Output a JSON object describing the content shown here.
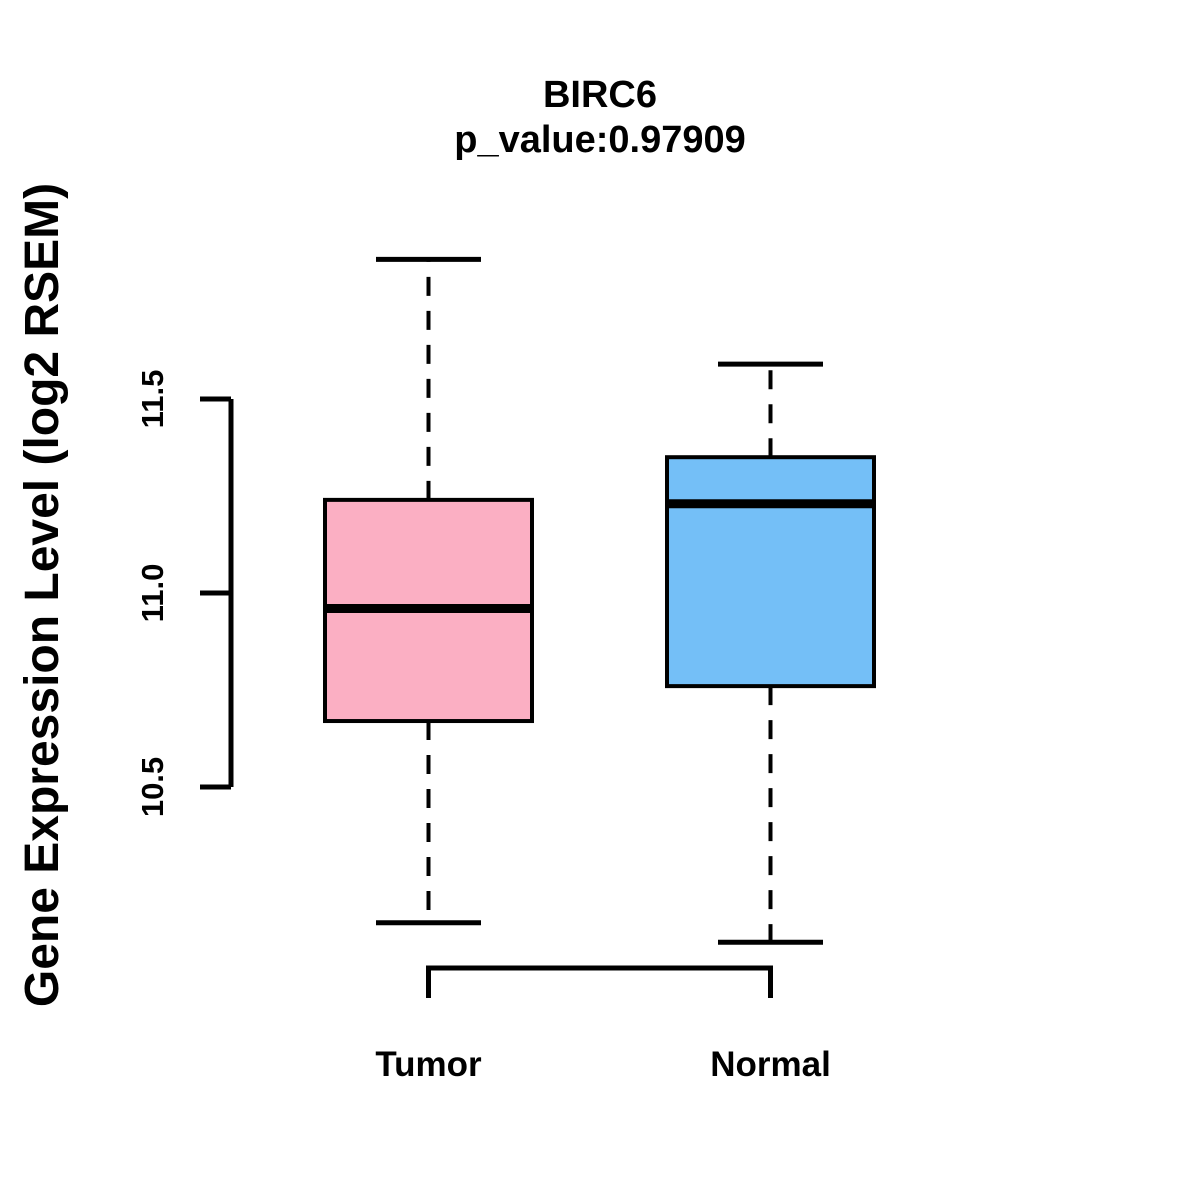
{
  "figure": {
    "background_color": "#FFFFFF",
    "line_color": "#000000"
  },
  "chart_data": {
    "type": "boxplot",
    "title": "BIRC6",
    "subtitle": "p_value:0.97909",
    "gene": "BIRC6",
    "p_value": 0.97909,
    "ylabel": "Gene Expression Level (log2 RSEM)",
    "xlabel": "",
    "y_ticks": [
      10.5,
      11.0,
      11.5
    ],
    "y_axis_range": [
      10.5,
      11.5
    ],
    "data_range": [
      10.1,
      11.86
    ],
    "grid": false,
    "legend_position": "none",
    "categories": [
      "Tumor",
      "Normal"
    ],
    "groups": [
      {
        "label": "Tumor",
        "fill_color": "#FBAFC3",
        "whisker_low": 10.15,
        "q1": 10.67,
        "median": 10.96,
        "q3": 11.24,
        "whisker_high": 11.86
      },
      {
        "label": "Normal",
        "fill_color": "#74BFF7",
        "whisker_low": 10.1,
        "q1": 10.76,
        "median": 11.23,
        "q3": 11.35,
        "whisker_high": 11.59
      }
    ]
  }
}
